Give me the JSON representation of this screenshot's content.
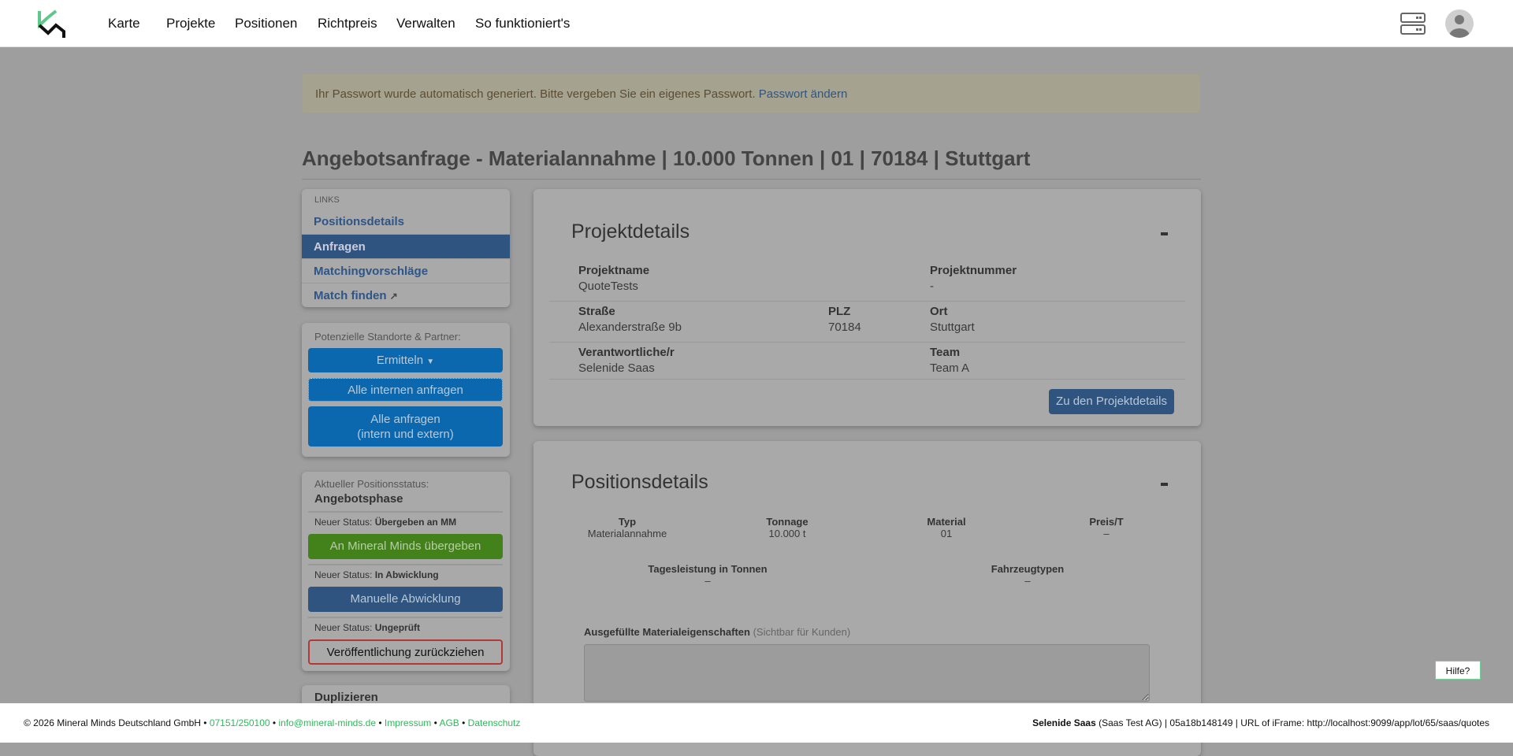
{
  "nav": {
    "items": [
      "Karte",
      "Projekte",
      "Positionen",
      "Richtpreis",
      "Verwalten",
      "So funktioniert's"
    ]
  },
  "alert": {
    "text": "Ihr Passwort wurde automatisch generiert. Bitte vergeben Sie ein eigenes Passwort.",
    "link": "Passwort ändern"
  },
  "title": "Angebotsanfrage - Materialannahme | 10.000 Tonnen | 01 | 70184 | Stuttgart",
  "links": {
    "header": "LINKS",
    "items": [
      "Positionsdetails",
      "Anfragen",
      "Matchingvorschläge",
      "Match finden"
    ],
    "active": 1
  },
  "partners": {
    "label": "Potenzielle Standorte & Partner:",
    "ermitteln": "Ermitteln",
    "alle_internen": "Alle internen anfragen",
    "alle_1": "Alle anfragen",
    "alle_2": "(intern und extern)"
  },
  "status": {
    "label": "Aktueller Positionsstatus:",
    "current": "Angebotsphase",
    "prefix": "Neuer Status:",
    "s1": "Übergeben an MM",
    "b1": "An Mineral Minds übergeben",
    "s2": "In Abwicklung",
    "b2": "Manuelle Abwicklung",
    "s3": "Ungeprüft",
    "b3": "Veröffentlichung zurückziehen"
  },
  "duplicate": {
    "title": "Duplizieren"
  },
  "project": {
    "heading": "Projektdetails",
    "collapse": "-",
    "projektname_l": "Projektname",
    "projektname": "QuoteTests",
    "projektnummer_l": "Projektnummer",
    "projektnummer": "-",
    "strasse_l": "Straße",
    "strasse": "Alexanderstraße 9b",
    "plz_l": "PLZ",
    "plz": "70184",
    "ort_l": "Ort",
    "ort": "Stuttgart",
    "verantw_l": "Verantwortliche/r",
    "verantw": "Selenide Saas",
    "team_l": "Team",
    "team": "Team A",
    "button": "Zu den Projektdetails"
  },
  "position": {
    "heading": "Positionsdetails",
    "collapse": "-",
    "cols": [
      {
        "l": "Typ",
        "v": "Materialannahme"
      },
      {
        "l": "Tonnage",
        "v": "10.000 t"
      },
      {
        "l": "Material",
        "v": "01"
      },
      {
        "l": "Preis/T",
        "v": "–"
      }
    ],
    "cols2": [
      {
        "l": "Tagesleistung in Tonnen",
        "v": "–"
      },
      {
        "l": "Fahrzeugtypen",
        "v": "–"
      }
    ],
    "props_label": "Ausgefüllte Materialeigenschaften",
    "props_hint": "(Sichtbar für Kunden)",
    "props_value": ""
  },
  "footer": {
    "copy": "© 2026 Mineral Minds Deutschland GmbH •",
    "phone": "07151/250100",
    "email": "info@mineral-minds.de",
    "impressum": "Impressum",
    "agb": "AGB",
    "datenschutz": "Datenschutz",
    "user": "Selenide Saas",
    "info": "(Saas Test AG) | 05a18b148149 | URL of iFrame: http://localhost:9099/app/lot/65/saas/quotes"
  },
  "help": "Hilfe?",
  "colors": {
    "accent_green": "#5cc98a",
    "blue": "#0b68ae",
    "dark_blue": "#2f547f",
    "green": "#43821a",
    "danger": "#c0392b"
  }
}
